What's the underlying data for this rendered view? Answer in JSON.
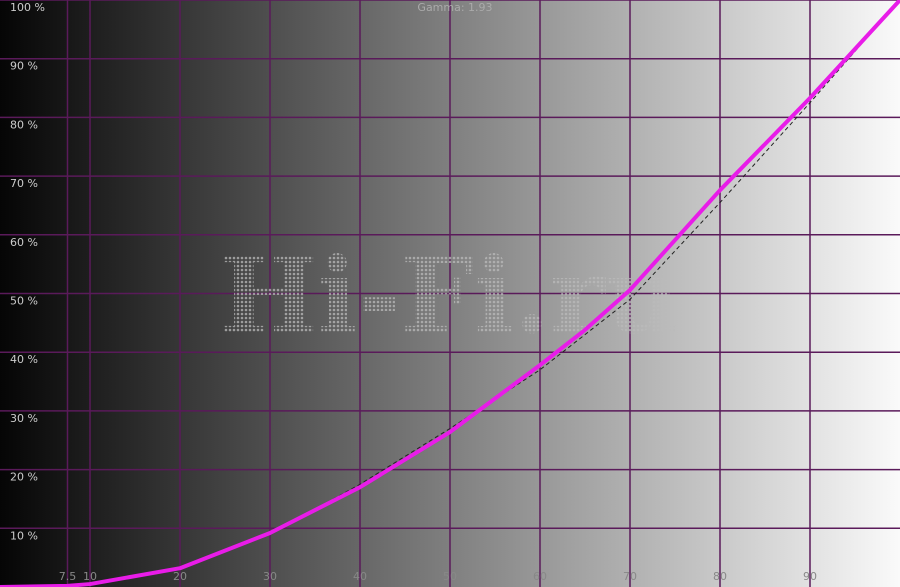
{
  "chart_data": {
    "type": "line",
    "title": "Gamma: 1.93",
    "watermark": "Hi-Fi.ru",
    "x": [
      0,
      7.5,
      10,
      20,
      30,
      40,
      50,
      60,
      65,
      70,
      80,
      90,
      100
    ],
    "series": [
      {
        "color": "#e81ce8",
        "style": "solid",
        "values": [
          0,
          0.2,
          0.5,
          3.2,
          9.2,
          17,
          26.4,
          37.8,
          43.8,
          50.6,
          67.6,
          83.3,
          100
        ]
      },
      {
        "color": "#222222",
        "style": "dashed",
        "values": [
          0,
          0.2,
          0.5,
          3,
          9,
          17.5,
          27,
          37,
          43,
          49,
          65.5,
          82.5,
          100
        ]
      }
    ],
    "xlim": [
      0,
      100
    ],
    "ylim": [
      0,
      100
    ],
    "xticks": [
      7.5,
      10,
      20,
      30,
      40,
      50,
      60,
      70,
      80,
      90
    ],
    "yticks": [
      {
        "value": 10,
        "label": "10 %"
      },
      {
        "value": 20,
        "label": "20 %"
      },
      {
        "value": 30,
        "label": "30 %"
      },
      {
        "value": 40,
        "label": "40 %"
      },
      {
        "value": 50,
        "label": "50 %"
      },
      {
        "value": 60,
        "label": "60 %"
      },
      {
        "value": 70,
        "label": "70 %"
      },
      {
        "value": 80,
        "label": "80 %"
      },
      {
        "value": 90,
        "label": "90 %"
      },
      {
        "value": 100,
        "label": "100 %"
      }
    ],
    "grid": true,
    "grid_color": "#5a1a5a"
  }
}
